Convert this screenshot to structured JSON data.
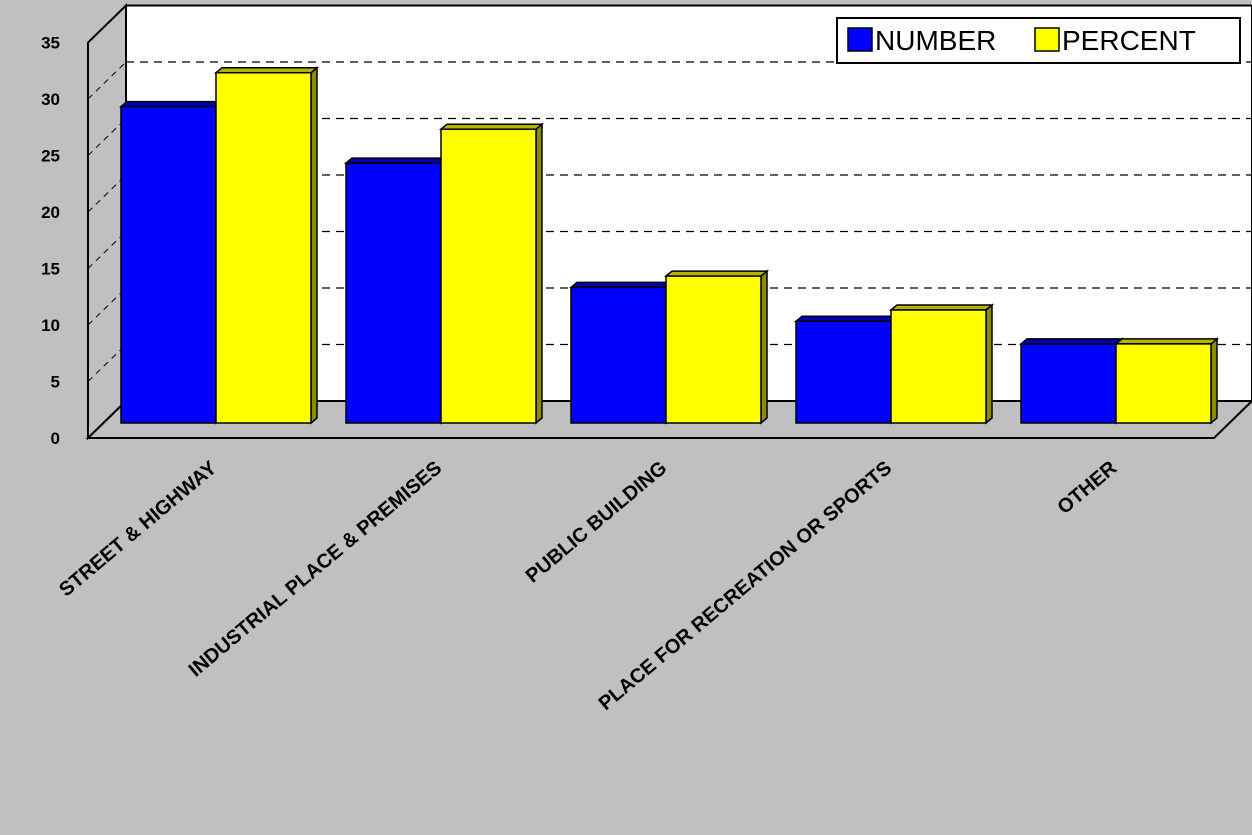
{
  "chart_data": {
    "type": "bar",
    "title": "",
    "xlabel": "",
    "ylabel": "",
    "ylim": [
      0,
      35
    ],
    "yticks": [
      0,
      5,
      10,
      15,
      20,
      25,
      30,
      35
    ],
    "categories": [
      "STREET & HIGHWAY",
      "INDUSTRIAL PLACE & PREMISES",
      "PUBLIC BUILDING",
      "PLACE FOR RECREATION OR SPORTS",
      "OTHER"
    ],
    "series": [
      {
        "name": "NUMBER",
        "color": "#0000ff",
        "values": [
          28,
          23,
          12,
          9,
          7
        ]
      },
      {
        "name": "PERCENT",
        "color": "#ffff00",
        "values": [
          31,
          26,
          13,
          10,
          7
        ]
      }
    ],
    "grid": true,
    "gridstyle": "dashed",
    "three_d": true,
    "legend_position": "top-right"
  }
}
